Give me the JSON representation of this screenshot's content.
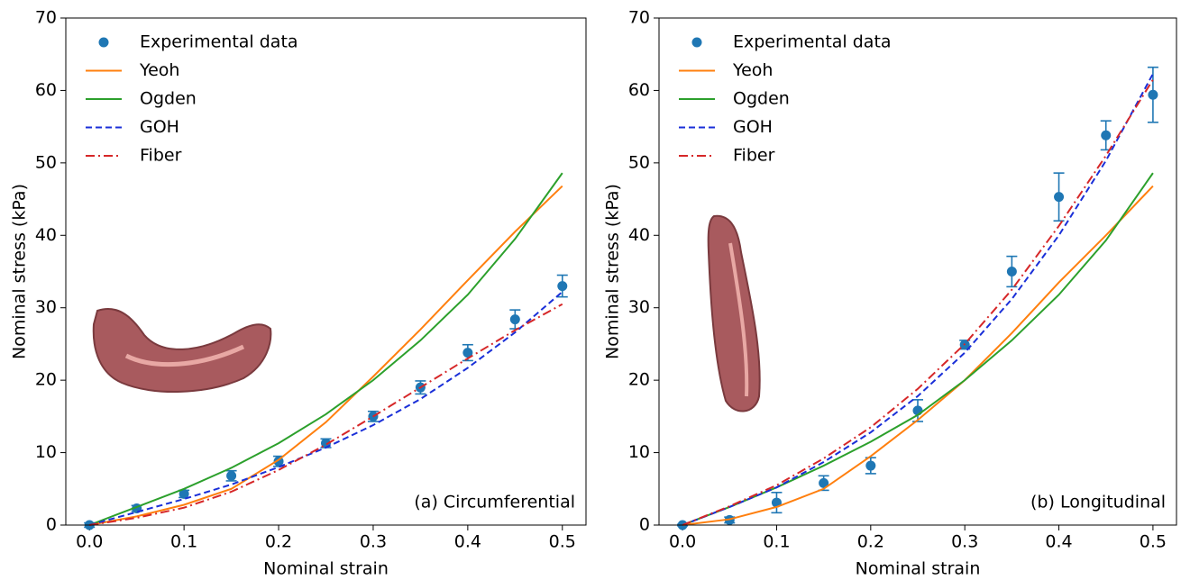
{
  "chart_data": [
    {
      "type": "line",
      "xlabel": "Nominal strain",
      "ylabel": "Nominal stress (kPa)",
      "annotation": "(a) Circumferential",
      "x": [
        0,
        0.05,
        0.1,
        0.15,
        0.2,
        0.25,
        0.3,
        0.35,
        0.4,
        0.45,
        0.5
      ],
      "xlim": [
        -0.025,
        0.525
      ],
      "ylim": [
        0,
        70
      ],
      "xticks": [
        {
          "value": 0,
          "label": "0.0"
        },
        0.1,
        0.2,
        0.3,
        0.4,
        0.5
      ],
      "yticks": [
        0,
        10,
        20,
        30,
        40,
        50,
        60,
        70
      ],
      "legend": "upper left",
      "series": [
        {
          "name": "Experimental data",
          "color": "#1f77b4",
          "style": "markers",
          "values": [
            0,
            2.3,
            4.3,
            6.8,
            8.8,
            11.3,
            15,
            19,
            23.8,
            28.4,
            33
          ],
          "errors": [
            0.3,
            0.4,
            0.5,
            0.7,
            0.7,
            0.6,
            0.7,
            0.9,
            1.1,
            1.3,
            1.5
          ]
        },
        {
          "name": "Yeoh",
          "color": "#ff7f0e",
          "style": "solid",
          "values": [
            0,
            1.2,
            2.8,
            5.0,
            9.0,
            14.2,
            20.5,
            27.0,
            33.8,
            40.5,
            46.8
          ]
        },
        {
          "name": "Ogden",
          "color": "#2ca02c",
          "style": "solid",
          "values": [
            0,
            2.5,
            5.0,
            7.9,
            11.3,
            15.3,
            20.0,
            25.5,
            31.8,
            39.5,
            48.6
          ]
        },
        {
          "name": "GOH",
          "color": "#1a2fd8",
          "style": "dashed",
          "values": [
            0,
            1.8,
            3.6,
            5.6,
            8.0,
            10.7,
            13.8,
            17.4,
            21.7,
            26.6,
            32.2
          ]
        },
        {
          "name": "Fiber",
          "color": "#d62728",
          "style": "dashdot",
          "values": [
            0,
            1.0,
            2.4,
            4.6,
            7.6,
            11.1,
            15.0,
            19.0,
            23.0,
            26.9,
            30.5
          ]
        }
      ]
    },
    {
      "type": "line",
      "xlabel": "Nominal strain",
      "ylabel": "Nominal stress (kPa)",
      "annotation": "(b) Longitudinal",
      "x": [
        0,
        0.05,
        0.1,
        0.15,
        0.2,
        0.25,
        0.3,
        0.35,
        0.4,
        0.45,
        0.5
      ],
      "xlim": [
        -0.025,
        0.525
      ],
      "ylim": [
        0,
        70
      ],
      "xticks": [
        {
          "value": 0,
          "label": "0.0"
        },
        0.1,
        0.2,
        0.3,
        0.4,
        0.5
      ],
      "yticks": [
        0,
        10,
        20,
        30,
        40,
        50,
        60,
        70
      ],
      "legend": "upper left",
      "series": [
        {
          "name": "Experimental data",
          "color": "#1f77b4",
          "style": "markers",
          "values": [
            0,
            0.7,
            3.1,
            5.8,
            8.2,
            15.8,
            24.9,
            35,
            45.3,
            53.8,
            59.4
          ],
          "errors": [
            0.1,
            0.4,
            1.4,
            1.0,
            1.1,
            1.5,
            0.6,
            2.1,
            3.3,
            2.0,
            3.8
          ]
        },
        {
          "name": "Yeoh",
          "color": "#ff7f0e",
          "style": "solid",
          "values": [
            0,
            0.8,
            2.5,
            5.0,
            9.5,
            14.5,
            20.0,
            26.5,
            33.5,
            40.0,
            46.8
          ]
        },
        {
          "name": "Ogden",
          "color": "#2ca02c",
          "style": "solid",
          "values": [
            0,
            2.5,
            5.2,
            8.2,
            11.5,
            15.2,
            20.0,
            25.5,
            31.8,
            39.3,
            48.6
          ]
        },
        {
          "name": "GOH",
          "color": "#1a2fd8",
          "style": "dashed",
          "values": [
            0,
            2.5,
            5.2,
            8.7,
            12.8,
            17.8,
            23.8,
            31.2,
            40.0,
            50.3,
            62.3
          ]
        },
        {
          "name": "Fiber",
          "color": "#d62728",
          "style": "dashdot",
          "values": [
            0,
            2.6,
            5.5,
            9.2,
            13.5,
            18.8,
            25.0,
            32.5,
            41.3,
            51.0,
            61.5
          ]
        }
      ]
    }
  ]
}
